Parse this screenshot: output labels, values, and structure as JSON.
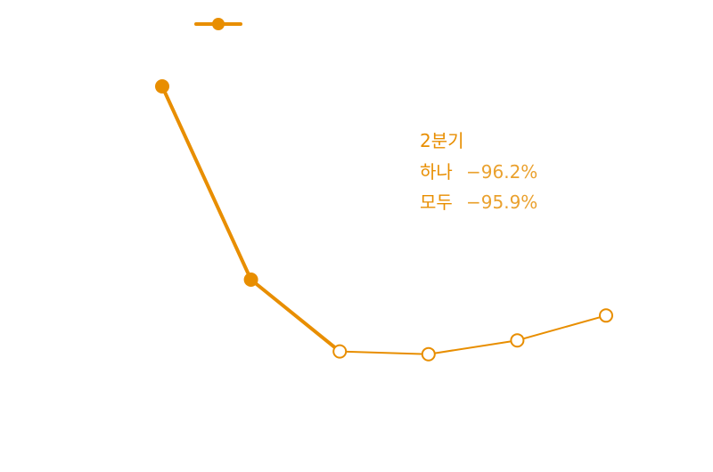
{
  "chart_data": {
    "type": "line",
    "x": [
      "",
      "",
      "",
      "",
      "",
      ""
    ],
    "series": [
      {
        "name": "",
        "color": "#e88e00",
        "values": [
          100,
          65,
          52,
          51.5,
          54,
          58.5
        ],
        "point_style": [
          "filled",
          "filled",
          "hollow",
          "hollow",
          "hollow",
          "hollow"
        ]
      }
    ],
    "legend": {
      "position": "top-left",
      "marker": "line-with-filled-circle"
    },
    "annotation": {
      "title": "2분기",
      "rows": [
        {
          "label": "하나",
          "value": "−96.2%"
        },
        {
          "label": "모두",
          "value": "−95.9%"
        }
      ]
    },
    "grid": false,
    "axes_visible": false,
    "ylim": [
      0,
      110
    ]
  }
}
